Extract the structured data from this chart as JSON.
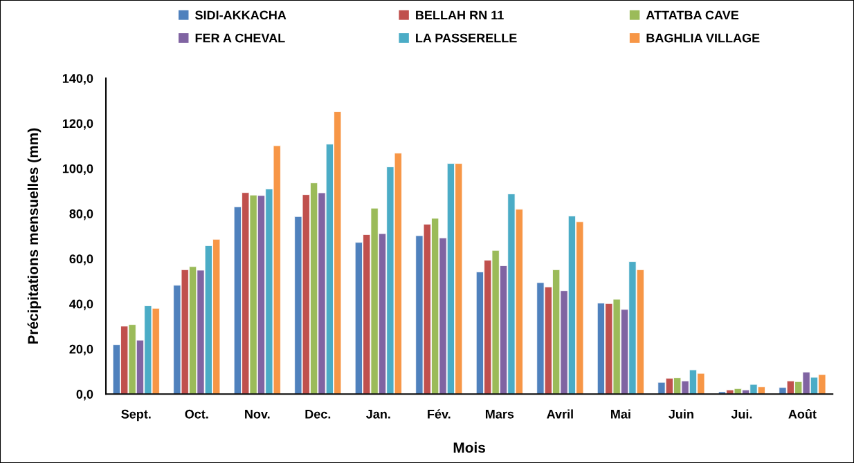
{
  "chart_data": {
    "type": "bar",
    "xlabel": "Mois",
    "ylabel": "Précipitations mensuelles (mm)",
    "categories": [
      "Sept.",
      "Oct.",
      "Nov.",
      "Dec.",
      "Jan.",
      "Fév.",
      "Mars",
      "Avril",
      "Mai",
      "Juin",
      "Jui.",
      "Août"
    ],
    "series": [
      {
        "name": "SIDI-AKKACHA",
        "color": "#4f81bd",
        "values": [
          21.9,
          48.2,
          83.0,
          78.7,
          67.2,
          70.2,
          54.1,
          49.4,
          40.3,
          5.2,
          1.0,
          2.9
        ]
      },
      {
        "name": "BELLAH RN 11",
        "color": "#c0504d",
        "values": [
          30.1,
          55.1,
          89.3,
          88.4,
          70.7,
          75.3,
          59.3,
          47.5,
          40.1,
          7.0,
          1.8,
          5.8
        ]
      },
      {
        "name": "ATTATBA CAVE",
        "color": "#9bbb59",
        "values": [
          30.8,
          56.5,
          88.2,
          93.6,
          82.4,
          77.9,
          63.7,
          55.1,
          42.0,
          7.2,
          2.4,
          5.5
        ]
      },
      {
        "name": "FER A CHEVAL",
        "color": "#8064a2",
        "values": [
          23.9,
          54.9,
          88.0,
          89.2,
          71.1,
          69.2,
          56.9,
          45.8,
          37.5,
          5.8,
          1.8,
          9.7
        ]
      },
      {
        "name": "LA PASSERELLE",
        "color": "#4bacc6",
        "values": [
          39.1,
          65.8,
          90.9,
          110.8,
          100.7,
          102.2,
          88.7,
          78.9,
          58.7,
          10.7,
          4.3,
          7.4
        ]
      },
      {
        "name": "BAGHLIA VILLAGE",
        "color": "#f79646",
        "values": [
          38.0,
          68.6,
          110.1,
          125.2,
          106.8,
          102.2,
          81.9,
          76.4,
          55.1,
          9.2,
          3.2,
          8.6
        ]
      }
    ],
    "ylim": [
      0,
      140
    ],
    "yticks": [
      {
        "value": 0,
        "label": "0,0"
      },
      {
        "value": 20,
        "label": "20,0"
      },
      {
        "value": 40,
        "label": "40,0"
      },
      {
        "value": 60,
        "label": "60,0"
      },
      {
        "value": 80,
        "label": "80,0"
      },
      {
        "value": 100,
        "label": "100,0"
      },
      {
        "value": 120,
        "label": "120,0"
      },
      {
        "value": 140,
        "label": "140,0"
      }
    ],
    "grid": false,
    "legend": "top"
  }
}
